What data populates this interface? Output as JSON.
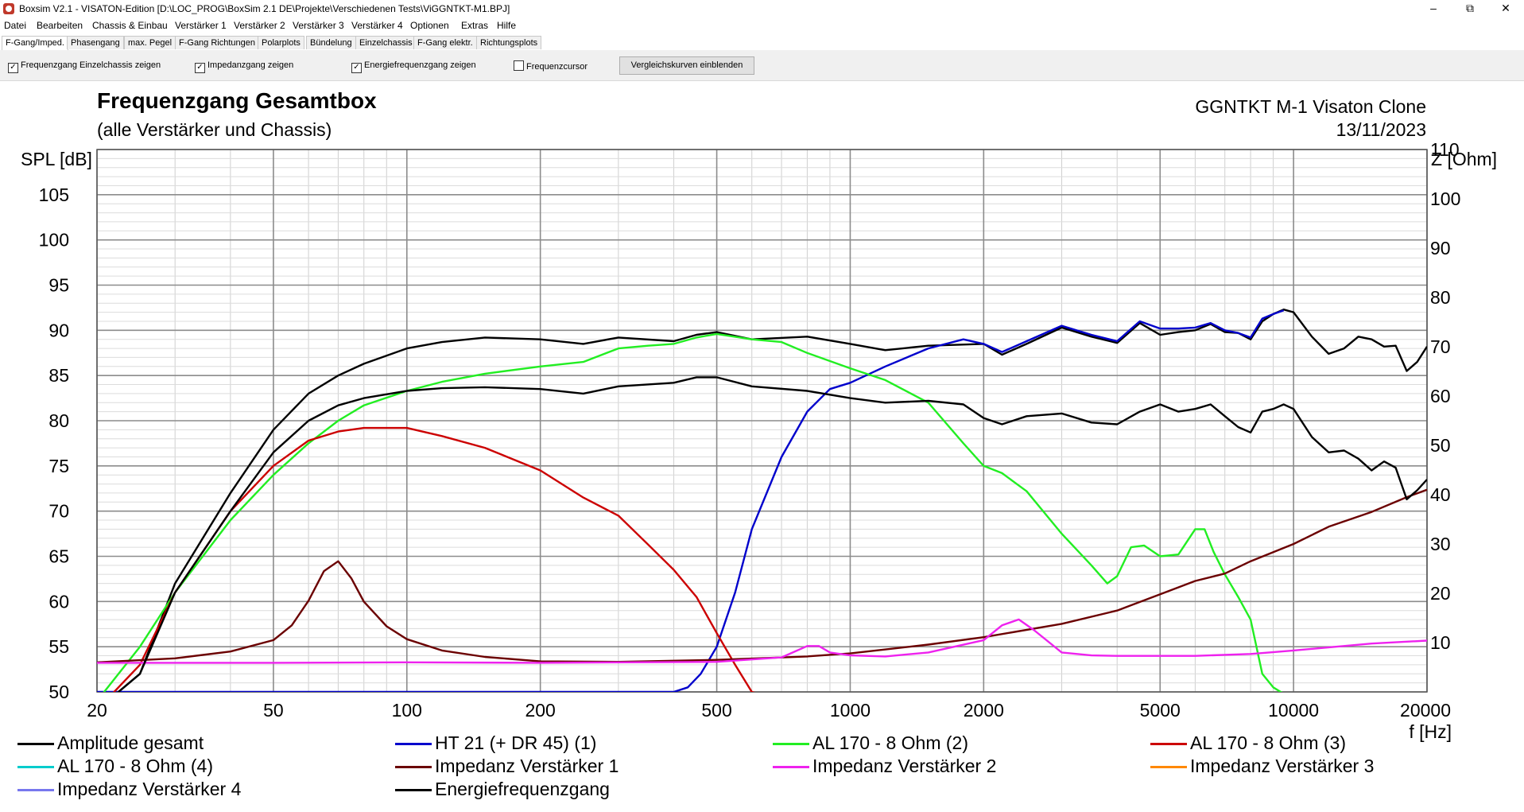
{
  "window": {
    "title": "Boxsim V2.1 - VISATON-Edition [D:\\LOC_PROG\\BoxSim 2.1 DE\\Projekte\\Verschiedenen Tests\\ViGGNTKT-M1.BPJ]",
    "minimize": "–",
    "maximize": "⧉",
    "close": "✕"
  },
  "menu": [
    "Datei",
    "Bearbeiten",
    "Chassis & Einbau",
    "Verstärker 1",
    "Verstärker 2",
    "Verstärker 3",
    "Verstärker 4",
    "Optionen",
    "Extras",
    "Hilfe"
  ],
  "tabs": [
    "F-Gang/Imped.",
    "Phasengang",
    "max. Pegel",
    "F-Gang Richtungen",
    "Polarplots",
    "Bündelung",
    "Einzelchassis",
    "F-Gang elektr.",
    "Richtungsplots"
  ],
  "active_tab": "F-Gang/Imped.",
  "options": {
    "einzelchassis": {
      "label": "Frequenzgang Einzelchassis zeigen",
      "checked": true
    },
    "impedanz": {
      "label": "Impedanzgang zeigen",
      "checked": true
    },
    "energie": {
      "label": "Energiefrequenzgang zeigen",
      "checked": true
    },
    "cursor": {
      "label": "Frequenzcursor",
      "checked": false
    },
    "compare_button": "Vergleichskurven einblenden",
    "check_mark": "✓"
  },
  "header": {
    "title": "Frequenzgang Gesamtbox",
    "subtitle": "(alle Verstärker und Chassis)",
    "project": "GGNTKT M-1 Visaton Clone",
    "date": "13/11/2023"
  },
  "chart_data": {
    "type": "line",
    "xscale": "log",
    "xlim": [
      20,
      20000
    ],
    "ylim_left": [
      50,
      110
    ],
    "ylim_right": [
      0,
      110
    ],
    "grid": true,
    "ylabel_left": "SPL [dB]",
    "ylabel_right": "Z [Ohm]",
    "xlabel": "f [Hz]",
    "xticks": [
      20,
      50,
      100,
      200,
      500,
      1000,
      2000,
      5000,
      10000,
      20000
    ],
    "xtick_labels": [
      "20",
      "50",
      "100",
      "200",
      "500",
      "1000",
      "2000",
      "5000",
      "10000",
      "20000"
    ],
    "yticks_left": [
      50,
      55,
      60,
      65,
      70,
      75,
      80,
      85,
      90,
      95,
      100,
      105
    ],
    "ytick_labels_left": [
      "50",
      "55",
      "60",
      "65",
      "70",
      "75",
      "80",
      "85",
      "90",
      "95",
      "100",
      "105"
    ],
    "yticks_right": [
      10,
      20,
      30,
      40,
      50,
      60,
      70,
      80,
      90,
      100,
      110
    ],
    "ytick_labels_right": [
      "10",
      "20",
      "30",
      "40",
      "50",
      "60",
      "70",
      "80",
      "90",
      "100",
      "110"
    ],
    "series": [
      {
        "name": "Amplitude gesamt",
        "color": "#000000",
        "axis": "left",
        "x": [
          20,
          25,
          30,
          40,
          50,
          60,
          70,
          80,
          100,
          120,
          150,
          200,
          250,
          300,
          400,
          450,
          500,
          600,
          800,
          1000,
          1200,
          1500,
          2000,
          2200,
          2500,
          3000,
          3500,
          4000,
          4500,
          5000,
          5500,
          6000,
          6500,
          7000,
          7500,
          8000,
          8500,
          9000,
          9500,
          10000,
          11000,
          12000,
          13000,
          14000,
          15000,
          16000,
          17000,
          18000,
          19000,
          20000
        ],
        "y": [
          48,
          52,
          62,
          72,
          79,
          83,
          85,
          86.3,
          88,
          88.7,
          89.2,
          89,
          88.5,
          89.2,
          88.8,
          89.5,
          89.8,
          89,
          89.3,
          88.5,
          87.8,
          88.3,
          88.5,
          87.3,
          88.5,
          90.3,
          89.3,
          88.6,
          90.8,
          89.5,
          89.8,
          90,
          90.7,
          89.8,
          89.7,
          89,
          91,
          91.8,
          92.3,
          92,
          89.3,
          87.4,
          88,
          89.3,
          89,
          88.2,
          88.3,
          85.5,
          86.5,
          88.2
        ]
      },
      {
        "name": "HT 21 (+ DR 45) (1)",
        "color": "#0000cc",
        "axis": "left",
        "x": [
          20,
          400,
          430,
          460,
          500,
          550,
          600,
          700,
          800,
          900,
          1000,
          1200,
          1500,
          1800,
          2000,
          2200,
          2500,
          3000,
          3500,
          4000,
          4500,
          5000,
          5500,
          6000,
          6500,
          7000,
          7500,
          8000,
          8500,
          9000,
          9500
        ],
        "y": [
          50,
          50,
          50.5,
          52,
          55,
          61,
          68,
          76,
          81,
          83.5,
          84.2,
          86,
          88,
          89,
          88.5,
          87.6,
          88.8,
          90.5,
          89.5,
          88.8,
          91,
          90.2,
          90.2,
          90.3,
          90.8,
          90,
          89.7,
          89.2,
          91.3,
          91.8,
          92.2
        ]
      },
      {
        "name": "AL 170 - 8 Ohm (2)",
        "color": "#22ee22",
        "axis": "left",
        "x": [
          20,
          25,
          30,
          40,
          50,
          60,
          70,
          80,
          100,
          120,
          150,
          200,
          250,
          300,
          350,
          400,
          450,
          500,
          600,
          700,
          800,
          1000,
          1200,
          1500,
          1800,
          2000,
          2200,
          2500,
          3000,
          3500,
          3800,
          4000,
          4300,
          4600,
          5000,
          5500,
          6000,
          6300,
          6600,
          7000,
          7500,
          8000,
          8500,
          9000,
          9500,
          10000,
          20000
        ],
        "y": [
          49,
          55,
          61,
          69,
          74,
          77.5,
          80,
          81.7,
          83.3,
          84.3,
          85.2,
          86,
          86.5,
          88,
          88.3,
          88.5,
          89.2,
          89.6,
          89,
          88.7,
          87.5,
          85.8,
          84.5,
          82,
          77.5,
          75,
          74.2,
          72.2,
          67.5,
          64,
          62,
          62.8,
          66,
          66.2,
          65,
          65.2,
          68,
          68,
          65.5,
          63,
          60.5,
          58,
          52,
          50.5,
          49.8,
          49.8,
          49.8
        ]
      },
      {
        "name": "AL 170 - 8 Ohm (3)",
        "color": "#cc0000",
        "axis": "left",
        "x": [
          20,
          25,
          30,
          40,
          50,
          60,
          70,
          80,
          100,
          120,
          150,
          200,
          250,
          300,
          350,
          400,
          450,
          500,
          550,
          600,
          650
        ],
        "y": [
          48,
          53,
          61,
          70,
          75,
          77.8,
          78.8,
          79.2,
          79.2,
          78.3,
          77,
          74.5,
          71.5,
          69.5,
          66.3,
          63.5,
          60.5,
          56.5,
          53,
          50,
          49.5
        ]
      },
      {
        "name": "AL 170 - 8 Ohm (4)",
        "color": "#00cccc",
        "axis": "left",
        "x": [],
        "y": []
      },
      {
        "name": "Impedanz Verstärker 1",
        "color": "#6b0000",
        "axis": "right",
        "x": [
          20,
          30,
          40,
          50,
          55,
          60,
          65,
          70,
          75,
          80,
          90,
          100,
          120,
          150,
          200,
          300,
          500,
          800,
          1000,
          1500,
          2000,
          3000,
          4000,
          5000,
          6000,
          7000,
          8000,
          10000,
          12000,
          15000,
          18000,
          20000
        ],
        "y": [
          6,
          6.8,
          8.2,
          10.5,
          13.5,
          18.5,
          24.5,
          26.5,
          23,
          18.3,
          13.3,
          10.7,
          8.4,
          7.1,
          6.2,
          6.1,
          6.5,
          7.2,
          7.8,
          9.6,
          11.1,
          13.8,
          16.5,
          19.8,
          22.5,
          24,
          26.5,
          30,
          33.5,
          36.5,
          39.5,
          41
        ]
      },
      {
        "name": "Impedanz Verstärker 2",
        "color": "#ee22ee",
        "axis": "right",
        "x": [
          20,
          50,
          100,
          200,
          500,
          700,
          800,
          850,
          900,
          1000,
          1200,
          1500,
          2000,
          2200,
          2400,
          2600,
          3000,
          3500,
          4000,
          5000,
          6000,
          8000,
          10000,
          15000,
          20000
        ],
        "y": [
          5.9,
          5.9,
          6,
          5.9,
          6.1,
          7,
          9.3,
          9.3,
          8,
          7.4,
          7.2,
          8,
          10.5,
          13.5,
          14.7,
          12.5,
          8,
          7.4,
          7.3,
          7.3,
          7.3,
          7.7,
          8.4,
          9.8,
          10.4
        ]
      },
      {
        "name": "Impedanz Verstärker 3",
        "color": "#ff8800",
        "axis": "right",
        "x": [],
        "y": []
      },
      {
        "name": "Impedanz Verstärker 4",
        "color": "#7777ee",
        "axis": "right",
        "x": [],
        "y": []
      },
      {
        "name": "Energiefrequenzgang",
        "color": "#000000",
        "axis": "left",
        "x": [
          20,
          25,
          30,
          40,
          50,
          60,
          70,
          80,
          100,
          120,
          150,
          200,
          250,
          300,
          400,
          450,
          500,
          600,
          800,
          1000,
          1200,
          1500,
          1800,
          2000,
          2200,
          2500,
          3000,
          3500,
          4000,
          4500,
          5000,
          5500,
          6000,
          6500,
          7000,
          7500,
          8000,
          8500,
          9000,
          9500,
          10000,
          11000,
          12000,
          13000,
          14000,
          15000,
          16000,
          17000,
          18000,
          19000,
          20000
        ],
        "y": [
          48,
          52,
          61,
          70,
          76.5,
          80,
          81.7,
          82.5,
          83.3,
          83.6,
          83.7,
          83.5,
          83,
          83.8,
          84.2,
          84.8,
          84.8,
          83.8,
          83.3,
          82.5,
          82,
          82.2,
          81.8,
          80.3,
          79.6,
          80.5,
          80.8,
          79.8,
          79.6,
          81,
          81.8,
          81,
          81.3,
          81.8,
          80.5,
          79.3,
          78.7,
          81,
          81.3,
          81.8,
          81.3,
          78.2,
          76.5,
          76.7,
          75.8,
          74.5,
          75.5,
          74.8,
          71.3,
          72.3,
          73.5
        ]
      }
    ]
  }
}
